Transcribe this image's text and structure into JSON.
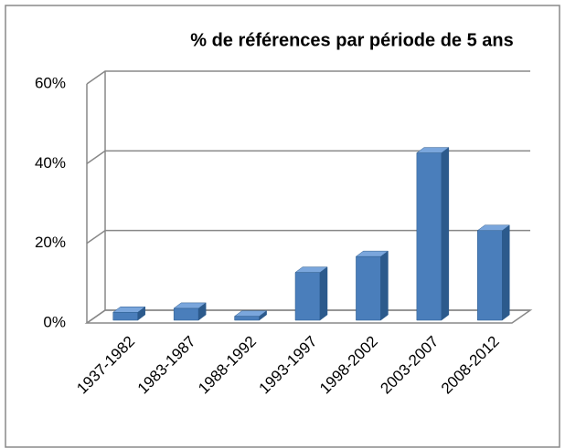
{
  "chart_data": {
    "type": "bar3d",
    "title": "% de références par période de 5 ans",
    "categories": [
      "1937-1982",
      "1983-1987",
      "1988-1992",
      "1993-1997",
      "1998-2002",
      "2003-2007",
      "2008-2012"
    ],
    "values": [
      2,
      3,
      1,
      12,
      16,
      42,
      22.5
    ],
    "color": "#4a7ebb",
    "ylim": [
      0,
      60
    ],
    "yticks": [
      {
        "value": 0,
        "label": "0%"
      },
      {
        "value": 20,
        "label": "20%"
      },
      {
        "value": 40,
        "label": "40%"
      },
      {
        "value": 60,
        "label": "60%"
      }
    ],
    "grid": true
  }
}
